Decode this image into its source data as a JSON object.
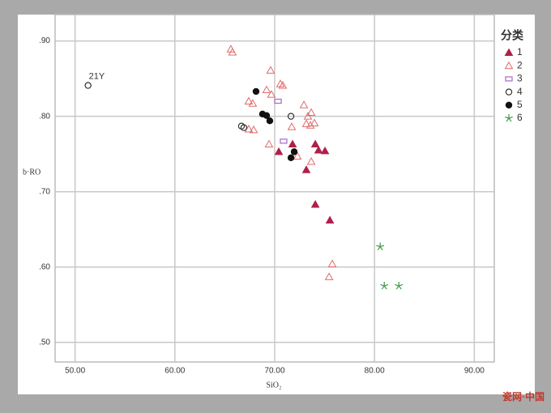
{
  "chart_data": {
    "type": "scatter",
    "x_label": "SiO₂",
    "y_label": "b·RO",
    "legend_title": "分类",
    "annotation": "21Y",
    "watermark": "瓷网·中国",
    "xlim": [
      48,
      92
    ],
    "ylim": [
      0.474,
      0.935
    ],
    "xticks": [
      {
        "value": 50,
        "label": "50.00"
      },
      {
        "value": 60,
        "label": "60.00"
      },
      {
        "value": 70,
        "label": "70.00"
      },
      {
        "value": 80,
        "label": "80.00"
      },
      {
        "value": 90,
        "label": "90.00"
      }
    ],
    "yticks": [
      {
        "value": 0.5,
        "label": ".50"
      },
      {
        "value": 0.6,
        "label": ".60"
      },
      {
        "value": 0.7,
        "label": ".70"
      },
      {
        "value": 0.8,
        "label": ".80"
      },
      {
        "value": 0.9,
        "label": ".90"
      }
    ],
    "grid": true,
    "series": [
      {
        "name": "1",
        "color": "#b0204a",
        "marker": "triangle-filled",
        "x": [
          70.41,
          71.79,
          73.17,
          74.07,
          74.39,
          75.04,
          74.07,
          75.53
        ],
        "values": [
          0.753,
          0.763,
          0.729,
          0.763,
          0.755,
          0.754,
          0.683,
          0.662
        ]
      },
      {
        "name": "2",
        "color": "#e06a6a",
        "marker": "triangle-open",
        "x": [
          65.61,
          65.77,
          69.59,
          70.57,
          70.81,
          67.4,
          67.8,
          69.19,
          69.67,
          72.93,
          73.66,
          73.33,
          73.98,
          73.58,
          73.17,
          67.4,
          67.89,
          69.43,
          71.71,
          72.28,
          73.66,
          75.77,
          75.45
        ],
        "values": [
          0.889,
          0.885,
          0.861,
          0.843,
          0.841,
          0.82,
          0.817,
          0.835,
          0.829,
          0.815,
          0.805,
          0.8,
          0.791,
          0.788,
          0.79,
          0.783,
          0.782,
          0.763,
          0.786,
          0.747,
          0.74,
          0.604,
          0.587
        ]
      },
      {
        "name": "3",
        "color": "#b070d0",
        "marker": "rect-open",
        "x": [
          70.33,
          70.89
        ],
        "values": [
          0.82,
          0.767
        ]
      },
      {
        "name": "4",
        "color": "#333333",
        "marker": "circle-open",
        "x": [
          51.3,
          66.67,
          66.91,
          71.63
        ],
        "values": [
          0.841,
          0.787,
          0.785,
          0.8
        ]
      },
      {
        "name": "5",
        "color": "#111111",
        "marker": "circle-filled",
        "x": [
          68.13,
          68.78,
          69.19,
          69.51,
          71.95,
          71.63
        ],
        "values": [
          0.833,
          0.803,
          0.801,
          0.794,
          0.753,
          0.745
        ]
      },
      {
        "name": "6",
        "color": "#3f9a45",
        "marker": "star",
        "x": [
          80.57,
          80.98,
          82.44
        ],
        "values": [
          0.627,
          0.575,
          0.575
        ]
      }
    ]
  }
}
